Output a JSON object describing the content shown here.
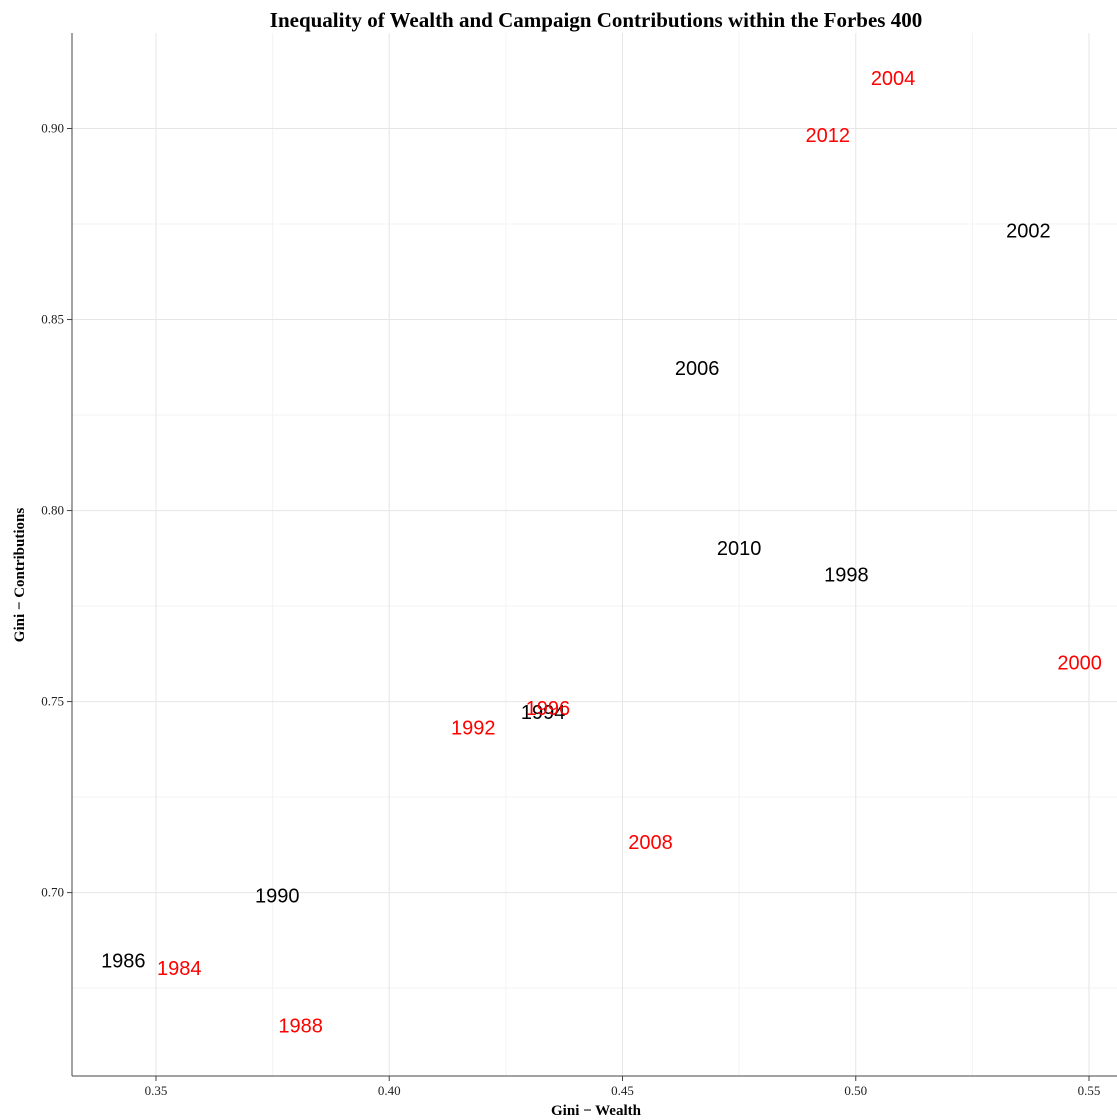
{
  "chart_data": {
    "type": "scatter",
    "title": "Inequality of Wealth and Campaign Contributions within the Forbes 400",
    "xlabel": "Gini − Wealth",
    "ylabel": "Gini − Contributions",
    "xlim": [
      0.332,
      0.556
    ],
    "ylim": [
      0.652,
      0.925
    ],
    "x_ticks": [
      0.35,
      0.4,
      0.45,
      0.5,
      0.55
    ],
    "x_tick_labels": [
      "0.35",
      "0.40",
      "0.45",
      "0.50",
      "0.55"
    ],
    "y_ticks": [
      0.7,
      0.75,
      0.8,
      0.85,
      0.9
    ],
    "y_tick_labels": [
      "0.70",
      "0.75",
      "0.80",
      "0.85",
      "0.90"
    ],
    "grid": true,
    "colors": {
      "black": "#000000",
      "red": "#ff0000"
    },
    "points": [
      {
        "label": "1984",
        "x": 0.355,
        "y": 0.68,
        "color": "red"
      },
      {
        "label": "1986",
        "x": 0.343,
        "y": 0.682,
        "color": "black"
      },
      {
        "label": "1988",
        "x": 0.381,
        "y": 0.665,
        "color": "red"
      },
      {
        "label": "1990",
        "x": 0.376,
        "y": 0.699,
        "color": "black"
      },
      {
        "label": "1992",
        "x": 0.418,
        "y": 0.743,
        "color": "red"
      },
      {
        "label": "1994",
        "x": 0.433,
        "y": 0.747,
        "color": "black"
      },
      {
        "label": "1996",
        "x": 0.434,
        "y": 0.748,
        "color": "red"
      },
      {
        "label": "1998",
        "x": 0.498,
        "y": 0.783,
        "color": "black"
      },
      {
        "label": "2000",
        "x": 0.548,
        "y": 0.76,
        "color": "red"
      },
      {
        "label": "2002",
        "x": 0.537,
        "y": 0.873,
        "color": "black"
      },
      {
        "label": "2004",
        "x": 0.508,
        "y": 0.913,
        "color": "red"
      },
      {
        "label": "2006",
        "x": 0.466,
        "y": 0.837,
        "color": "black"
      },
      {
        "label": "2008",
        "x": 0.456,
        "y": 0.713,
        "color": "red"
      },
      {
        "label": "2010",
        "x": 0.475,
        "y": 0.79,
        "color": "black"
      },
      {
        "label": "2012",
        "x": 0.494,
        "y": 0.898,
        "color": "red"
      }
    ]
  }
}
